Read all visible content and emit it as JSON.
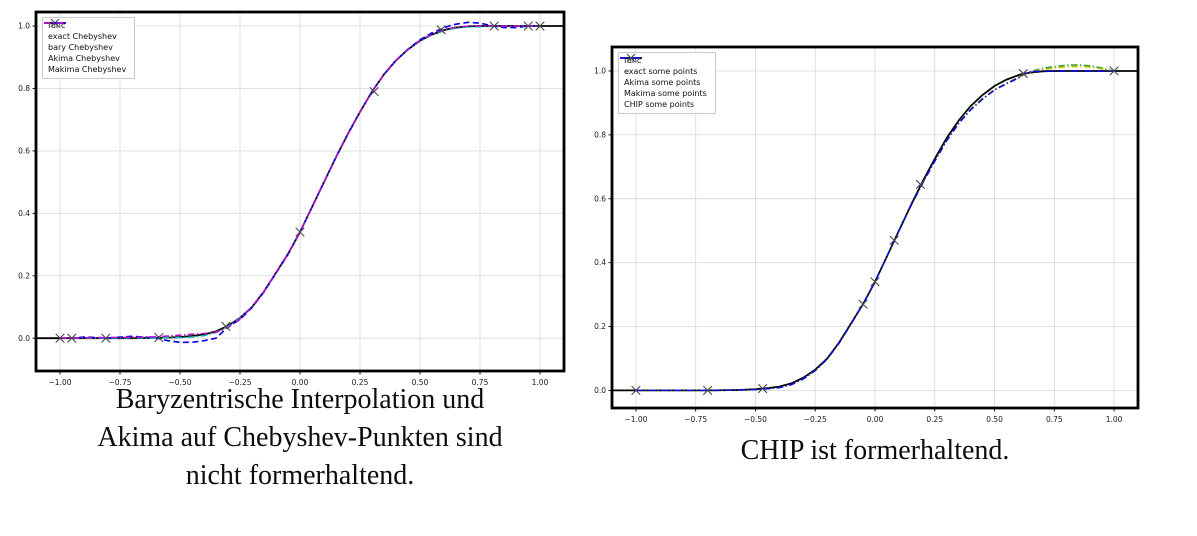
{
  "captions": {
    "left": [
      "Baryzentrische Interpolation und",
      "Akima auf Chebyshev-Punkten sind",
      "nicht formerhaltend."
    ],
    "right": [
      "CHIP ist formerhaltend."
    ]
  },
  "colors": {
    "func": "#000000",
    "marker": "#4a4a4a",
    "bary": "#0000ee",
    "akima_cyan": "#00bfbf",
    "makima_magenta": "#c000c0",
    "akima_green": "#2e9e2e",
    "makima_yellow": "#bfbf00",
    "chip_blue": "#0000ee",
    "grid": "#dcdcdc"
  },
  "chart_data": [
    {
      "type": "line",
      "title": "",
      "xlabel": "",
      "ylabel": "",
      "grid": true,
      "legend_position": "upper left",
      "xlim": [
        -1.1,
        1.1
      ],
      "ylim": [
        -0.105,
        1.045
      ],
      "xticks": {
        "values": [
          -1.0,
          -0.75,
          -0.5,
          -0.25,
          0.0,
          0.25,
          0.5,
          0.75,
          1.0
        ],
        "labels": [
          "−1.00",
          "−0.75",
          "−0.50",
          "−0.25",
          "0.00",
          "0.25",
          "0.50",
          "0.75",
          "1.00"
        ]
      },
      "yticks": {
        "values": [
          0.0,
          0.2,
          0.4,
          0.6,
          0.8,
          1.0
        ],
        "labels": [
          "0.0",
          "0.2",
          "0.4",
          "0.6",
          "0.8",
          "1.0"
        ]
      },
      "x": [
        -1.1,
        -1.0,
        -0.95,
        -0.9,
        -0.8,
        -0.7,
        -0.6,
        -0.55,
        -0.5,
        -0.45,
        -0.4,
        -0.35,
        -0.3,
        -0.25,
        -0.2,
        -0.15,
        -0.1,
        -0.05,
        0.0,
        0.05,
        0.1,
        0.15,
        0.2,
        0.25,
        0.3,
        0.35,
        0.4,
        0.45,
        0.5,
        0.55,
        0.6,
        0.62,
        0.65,
        0.7,
        0.75,
        0.8,
        0.85,
        0.9,
        0.95,
        1.0,
        1.05,
        1.1
      ],
      "series": [
        {
          "name": "func",
          "color": "#000000",
          "style": "solid",
          "width": 1.8,
          "y": [
            0,
            0,
            0,
            0,
            0,
            0,
            0.001,
            0.002,
            0.004,
            0.007,
            0.012,
            0.022,
            0.04,
            0.065,
            0.1,
            0.15,
            0.21,
            0.27,
            0.34,
            0.42,
            0.5,
            0.58,
            0.655,
            0.725,
            0.79,
            0.845,
            0.89,
            0.925,
            0.953,
            0.973,
            0.987,
            0.991,
            0.995,
            0.999,
            1,
            1,
            1,
            1,
            1,
            1,
            1,
            1
          ]
        },
        {
          "name": "bary Chebyshev",
          "color": "#0000ee",
          "style": "dashed",
          "width": 1.6,
          "y": [
            null,
            0,
            0,
            0.004,
            0.001,
            0.006,
            0.001,
            -0.008,
            -0.013,
            -0.013,
            -0.008,
            0.0,
            0.036,
            0.06,
            0.098,
            0.148,
            0.208,
            0.268,
            0.34,
            0.42,
            0.5,
            0.58,
            0.655,
            0.725,
            0.79,
            0.845,
            0.89,
            0.926,
            0.956,
            0.978,
            0.994,
            1.0,
            1.006,
            1.012,
            1.009,
            1.001,
            0.995,
            0.995,
            1.0,
            1.0,
            null,
            null
          ]
        },
        {
          "name": "Akima Chebyshev",
          "color": "#00bfbf",
          "style": "dashdot",
          "width": 1.5,
          "y": [
            null,
            0,
            0,
            0,
            0,
            0.001,
            0.001,
            0.002,
            0.002,
            0.004,
            0.008,
            0.018,
            0.038,
            0.064,
            0.1,
            0.15,
            0.21,
            0.27,
            0.34,
            0.42,
            0.5,
            0.58,
            0.655,
            0.725,
            0.79,
            0.845,
            0.89,
            0.924,
            0.951,
            0.971,
            0.985,
            0.989,
            0.993,
            0.997,
            0.998,
            0.999,
            1,
            1,
            1,
            1,
            null,
            null
          ]
        },
        {
          "name": "Makima Chebyshev",
          "color": "#c000c0",
          "style": "dashdot",
          "width": 1.5,
          "y": [
            null,
            0,
            0,
            0.001,
            0.002,
            0.003,
            0.005,
            0.007,
            0.01,
            0.013,
            0.015,
            0.02,
            0.034,
            0.062,
            0.1,
            0.15,
            0.21,
            0.27,
            0.34,
            0.42,
            0.5,
            0.58,
            0.655,
            0.725,
            0.79,
            0.845,
            0.89,
            0.925,
            0.953,
            0.974,
            0.988,
            0.992,
            0.996,
            1,
            1,
            1,
            1,
            1,
            1,
            1,
            null,
            null
          ]
        }
      ],
      "points": {
        "name": "exact Chebyshev",
        "marker": "x",
        "color": "#4a4a4a",
        "x": [
          -1.0,
          -0.951,
          -0.809,
          -0.588,
          -0.309,
          0.0,
          0.309,
          0.588,
          0.809,
          0.951,
          1.0
        ],
        "y": [
          0,
          0,
          0,
          0.002,
          0.038,
          0.34,
          0.79,
          0.988,
          1.0,
          1.0,
          1.0
        ]
      },
      "legend": [
        {
          "label": "func",
          "color": "#000000",
          "style": "solid"
        },
        {
          "label": "exact Chebyshev",
          "color": "#4a4a4a",
          "style": "marker-x"
        },
        {
          "label": "bary Chebyshev",
          "color": "#0000ee",
          "style": "dashed"
        },
        {
          "label": "Akima Chebyshev",
          "color": "#00bfbf",
          "style": "dashdot"
        },
        {
          "label": "Makima Chebyshev",
          "color": "#c000c0",
          "style": "dashdot"
        }
      ]
    },
    {
      "type": "line",
      "title": "",
      "xlabel": "",
      "ylabel": "",
      "grid": true,
      "legend_position": "upper left",
      "xlim": [
        -1.1,
        1.1
      ],
      "ylim": [
        -0.055,
        1.075
      ],
      "xticks": {
        "values": [
          -1.0,
          -0.75,
          -0.5,
          -0.25,
          0.0,
          0.25,
          0.5,
          0.75,
          1.0
        ],
        "labels": [
          "−1.00",
          "−0.75",
          "−0.50",
          "−0.25",
          "0.00",
          "0.25",
          "0.50",
          "0.75",
          "1.00"
        ]
      },
      "yticks": {
        "values": [
          0.0,
          0.2,
          0.4,
          0.6,
          0.8,
          1.0
        ],
        "labels": [
          "0.0",
          "0.2",
          "0.4",
          "0.6",
          "0.8",
          "1.0"
        ]
      },
      "x": [
        -1.1,
        -1.0,
        -0.95,
        -0.9,
        -0.8,
        -0.7,
        -0.6,
        -0.55,
        -0.5,
        -0.45,
        -0.4,
        -0.35,
        -0.3,
        -0.25,
        -0.2,
        -0.15,
        -0.1,
        -0.05,
        0.0,
        0.05,
        0.1,
        0.15,
        0.2,
        0.25,
        0.3,
        0.35,
        0.4,
        0.45,
        0.5,
        0.55,
        0.6,
        0.62,
        0.65,
        0.7,
        0.75,
        0.8,
        0.85,
        0.9,
        0.95,
        1.0,
        1.05,
        1.1
      ],
      "series": [
        {
          "name": "func",
          "color": "#000000",
          "style": "solid",
          "width": 1.8,
          "y": [
            0,
            0,
            0,
            0,
            0,
            0,
            0.001,
            0.002,
            0.004,
            0.007,
            0.012,
            0.022,
            0.04,
            0.065,
            0.1,
            0.15,
            0.21,
            0.27,
            0.34,
            0.42,
            0.5,
            0.58,
            0.655,
            0.725,
            0.79,
            0.845,
            0.89,
            0.925,
            0.953,
            0.973,
            0.987,
            0.991,
            0.995,
            0.999,
            1,
            1,
            1,
            1,
            1,
            1,
            1,
            1
          ]
        },
        {
          "name": "Akima some points",
          "color": "#2e9e2e",
          "style": "dashdot",
          "width": 1.5,
          "y": [
            null,
            0,
            0,
            0,
            0,
            0,
            0.001,
            0.002,
            0.003,
            0.005,
            0.009,
            0.018,
            0.036,
            0.062,
            0.098,
            0.148,
            0.208,
            0.27,
            0.34,
            0.42,
            0.5,
            0.578,
            0.65,
            0.718,
            0.782,
            0.836,
            0.88,
            0.915,
            0.942,
            0.962,
            0.98,
            0.988,
            0.998,
            1.008,
            1.014,
            1.018,
            1.019,
            1.016,
            1.009,
            1.0,
            null,
            null
          ]
        },
        {
          "name": "Makima some points",
          "color": "#bfbf00",
          "style": "dashdot",
          "width": 1.5,
          "y": [
            null,
            0,
            0,
            0,
            0,
            0,
            0.001,
            0.002,
            0.003,
            0.005,
            0.009,
            0.018,
            0.036,
            0.062,
            0.098,
            0.148,
            0.208,
            0.27,
            0.34,
            0.42,
            0.5,
            0.578,
            0.65,
            0.718,
            0.782,
            0.836,
            0.88,
            0.915,
            0.942,
            0.962,
            0.978,
            0.986,
            0.995,
            1.004,
            1.009,
            1.013,
            1.014,
            1.012,
            1.006,
            1.0,
            null,
            null
          ]
        },
        {
          "name": "CHIP some points",
          "color": "#0000ee",
          "style": "dashdot",
          "width": 1.5,
          "y": [
            null,
            0,
            0,
            0,
            0,
            0,
            0.001,
            0.002,
            0.003,
            0.005,
            0.009,
            0.018,
            0.036,
            0.062,
            0.098,
            0.148,
            0.208,
            0.27,
            0.34,
            0.42,
            0.5,
            0.578,
            0.65,
            0.718,
            0.782,
            0.836,
            0.878,
            0.912,
            0.94,
            0.96,
            0.978,
            0.99,
            0.997,
            1,
            1,
            1,
            1,
            1,
            1,
            1,
            null,
            null
          ]
        }
      ],
      "points": {
        "name": "exact some points",
        "marker": "x",
        "color": "#4a4a4a",
        "x": [
          -1.0,
          -0.7,
          -0.47,
          -0.05,
          0.0,
          0.08,
          0.19,
          0.62,
          1.0
        ],
        "y": [
          0,
          0,
          0.006,
          0.27,
          0.34,
          0.47,
          0.645,
          0.992,
          1.0
        ]
      },
      "legend": [
        {
          "label": "func",
          "color": "#000000",
          "style": "solid"
        },
        {
          "label": "exact some points",
          "color": "#4a4a4a",
          "style": "marker-x"
        },
        {
          "label": "Akima some points",
          "color": "#2e9e2e",
          "style": "dashdot"
        },
        {
          "label": "Makima some points",
          "color": "#bfbf00",
          "style": "dashdot"
        },
        {
          "label": "CHIP some points",
          "color": "#0000ee",
          "style": "dashdot"
        }
      ]
    }
  ]
}
